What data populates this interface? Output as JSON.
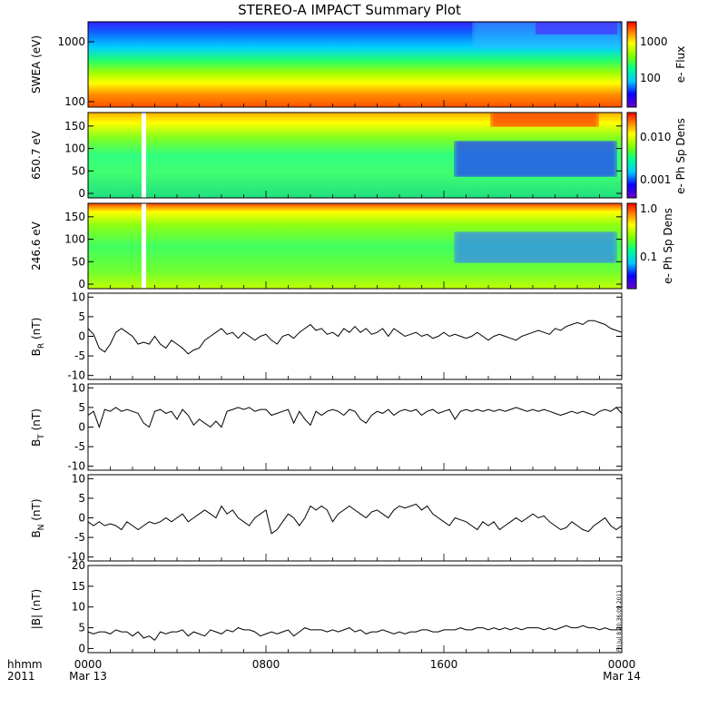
{
  "title": "STEREO-A IMPACT Summary Plot",
  "stamp": "Fri Jul 8 20:36:09 2011",
  "x_axis": {
    "row1_label": "hhmm",
    "row2_label": "2011",
    "ticks": [
      "0000",
      "0800",
      "1600",
      "0000"
    ],
    "dates": [
      "Mar 13",
      "Mar 14"
    ]
  },
  "colorbars": [
    {
      "label": "e- Flux",
      "ticks": [
        "1000",
        "100"
      ]
    },
    {
      "label": "e- Ph Sp Dens",
      "ticks": [
        "0.010",
        "0.001"
      ]
    },
    {
      "label": "e- Ph Sp Dens",
      "ticks": [
        "1.0",
        "0.1"
      ]
    }
  ],
  "panels": {
    "swea": {
      "ylabel": "SWEA (eV)",
      "yticks": [
        "1000",
        "100"
      ]
    },
    "pad650": {
      "ylabel": "650.7 eV",
      "yticks": [
        "150",
        "100",
        "50",
        "0"
      ]
    },
    "pad246": {
      "ylabel": "246.6 eV",
      "yticks": [
        "150",
        "100",
        "50",
        "0"
      ]
    },
    "br": {
      "ylabel": "B",
      "sub": "R",
      "unit": " (nT)",
      "yticks": [
        "10",
        "5",
        "0",
        "-5",
        "-10"
      ]
    },
    "bt": {
      "ylabel": "B",
      "sub": "T",
      "unit": " (nT)",
      "yticks": [
        "10",
        "5",
        "0",
        "-5",
        "-10"
      ]
    },
    "bn": {
      "ylabel": "B",
      "sub": "N",
      "unit": " (nT)",
      "yticks": [
        "10",
        "5",
        "0",
        "-5",
        "-10"
      ]
    },
    "bmag": {
      "ylabel": "|B| (nT)",
      "yticks": [
        "20",
        "15",
        "10",
        "5",
        "0"
      ]
    }
  },
  "chart_data": [
    {
      "type": "heatmap",
      "name": "SWEA",
      "x": [
        0,
        24
      ],
      "ylim": [
        90,
        2000
      ],
      "yscale": "log",
      "ylabel": "SWEA (eV)",
      "colorbar_label": "e- Flux",
      "colorbar_range": [
        20,
        3000
      ],
      "description_levels": [
        {
          "energy_eV": 1500,
          "flux": 30
        },
        {
          "energy_eV": 1000,
          "flux": 80
        },
        {
          "energy_eV": 600,
          "flux": 200
        },
        {
          "energy_eV": 300,
          "flux": 800
        },
        {
          "energy_eV": 150,
          "flux": 2000
        },
        {
          "energy_eV": 100,
          "flux": 2500
        }
      ]
    },
    {
      "type": "heatmap",
      "name": "PAD 650.7 eV",
      "x": [
        0,
        24
      ],
      "ylim": [
        -10,
        180
      ],
      "ylabel": "650.7 eV",
      "colorbar_label": "e- Ph Sp Dens",
      "colorbar_range": [
        0.0003,
        0.03
      ],
      "colorbar_scale": "log"
    },
    {
      "type": "heatmap",
      "name": "PAD 246.6 eV",
      "x": [
        0,
        24
      ],
      "ylim": [
        -10,
        180
      ],
      "ylabel": "246.6 eV",
      "colorbar_label": "e- Ph Sp Dens",
      "colorbar_range": [
        0.02,
        1.0
      ],
      "colorbar_scale": "log"
    },
    {
      "type": "line",
      "name": "B_R",
      "ylabel": "B_R (nT)",
      "ylim": [
        -11,
        11
      ],
      "xlim": [
        0,
        24
      ],
      "x": [
        0,
        0.25,
        0.5,
        0.75,
        1,
        1.25,
        1.5,
        1.75,
        2,
        2.25,
        2.5,
        2.75,
        3,
        3.25,
        3.5,
        3.75,
        4,
        4.25,
        4.5,
        4.75,
        5,
        5.25,
        5.5,
        5.75,
        6,
        6.25,
        6.5,
        6.75,
        7,
        7.25,
        7.5,
        7.75,
        8,
        8.25,
        8.5,
        8.75,
        9,
        9.25,
        9.5,
        9.75,
        10,
        10.25,
        10.5,
        10.75,
        11,
        11.25,
        11.5,
        11.75,
        12,
        12.25,
        12.5,
        12.75,
        13,
        13.25,
        13.5,
        13.75,
        14,
        14.25,
        14.5,
        14.75,
        15,
        15.25,
        15.5,
        15.75,
        16,
        16.25,
        16.5,
        16.75,
        17,
        17.25,
        17.5,
        17.75,
        18,
        18.25,
        18.5,
        18.75,
        19,
        19.25,
        19.5,
        19.75,
        20,
        20.25,
        20.5,
        20.75,
        21,
        21.25,
        21.5,
        21.75,
        22,
        22.25,
        22.5,
        22.75,
        23,
        23.25,
        23.5,
        23.75,
        24
      ],
      "values": [
        2,
        0.5,
        -3,
        -4,
        -2,
        1,
        2,
        1,
        0,
        -2,
        -1.5,
        -2,
        0,
        -2,
        -3,
        -1,
        -2,
        -3,
        -4.5,
        -3.5,
        -3,
        -1,
        0,
        1,
        2,
        0.5,
        1,
        -0.5,
        1,
        0,
        -1,
        0,
        0.5,
        -1,
        -2,
        0,
        0.5,
        -0.5,
        1,
        2,
        3,
        1.5,
        2,
        0.5,
        1,
        0,
        2,
        1,
        2.5,
        1,
        2,
        0.5,
        1,
        2,
        0,
        2,
        1,
        0,
        0.5,
        1,
        0,
        0.5,
        -0.5,
        0,
        1,
        0,
        0.5,
        0,
        -0.5,
        0,
        1,
        0,
        -1,
        0,
        0.5,
        0,
        -0.5,
        -1,
        0,
        0.5,
        1,
        1.5,
        1,
        0.5,
        2,
        1.5,
        2.5,
        3,
        3.5,
        3,
        4,
        4,
        3.5,
        3,
        2,
        1.5,
        1
      ]
    },
    {
      "type": "line",
      "name": "B_T",
      "ylabel": "B_T (nT)",
      "ylim": [
        -11,
        11
      ],
      "xlim": [
        0,
        24
      ],
      "x": [
        0,
        0.25,
        0.5,
        0.75,
        1,
        1.25,
        1.5,
        1.75,
        2,
        2.25,
        2.5,
        2.75,
        3,
        3.25,
        3.5,
        3.75,
        4,
        4.25,
        4.5,
        4.75,
        5,
        5.25,
        5.5,
        5.75,
        6,
        6.25,
        6.5,
        6.75,
        7,
        7.25,
        7.5,
        7.75,
        8,
        8.25,
        8.5,
        8.75,
        9,
        9.25,
        9.5,
        9.75,
        10,
        10.25,
        10.5,
        10.75,
        11,
        11.25,
        11.5,
        11.75,
        12,
        12.25,
        12.5,
        12.75,
        13,
        13.25,
        13.5,
        13.75,
        14,
        14.25,
        14.5,
        14.75,
        15,
        15.25,
        15.5,
        15.75,
        16,
        16.25,
        16.5,
        16.75,
        17,
        17.25,
        17.5,
        17.75,
        18,
        18.25,
        18.5,
        18.75,
        19,
        19.25,
        19.5,
        19.75,
        20,
        20.25,
        20.5,
        20.75,
        21,
        21.25,
        21.5,
        21.75,
        22,
        22.25,
        22.5,
        22.75,
        23,
        23.25,
        23.5,
        23.75,
        24
      ],
      "values": [
        3,
        4,
        0,
        4.5,
        4,
        5,
        4,
        4.5,
        4,
        3.5,
        1,
        0,
        4,
        4.5,
        3.5,
        4,
        2,
        4.5,
        3,
        0.5,
        2,
        1,
        0,
        1.5,
        0,
        4,
        4.5,
        5,
        4.5,
        5,
        4,
        4.5,
        4.5,
        3,
        3.5,
        4,
        4.5,
        1,
        4,
        2,
        0.5,
        4,
        3,
        4,
        4.5,
        4,
        3,
        4.5,
        4,
        2,
        1,
        3,
        4,
        3.5,
        4.5,
        3,
        4,
        4.5,
        4,
        4.5,
        3,
        4,
        4.5,
        3.5,
        4,
        4.5,
        2,
        4,
        4.5,
        4,
        4.5,
        4,
        4.5,
        4,
        4.5,
        4,
        4.5,
        5,
        4.5,
        4,
        4.5,
        4,
        4.5,
        4,
        3.5,
        3,
        3.5,
        4,
        3.5,
        4,
        3.5,
        3,
        4,
        4.5,
        4,
        5,
        3.5
      ]
    },
    {
      "type": "line",
      "name": "B_N",
      "ylabel": "B_N (nT)",
      "ylim": [
        -11,
        11
      ],
      "xlim": [
        0,
        24
      ],
      "x": [
        0,
        0.25,
        0.5,
        0.75,
        1,
        1.25,
        1.5,
        1.75,
        2,
        2.25,
        2.5,
        2.75,
        3,
        3.25,
        3.5,
        3.75,
        4,
        4.25,
        4.5,
        4.75,
        5,
        5.25,
        5.5,
        5.75,
        6,
        6.25,
        6.5,
        6.75,
        7,
        7.25,
        7.5,
        7.75,
        8,
        8.25,
        8.5,
        8.75,
        9,
        9.25,
        9.5,
        9.75,
        10,
        10.25,
        10.5,
        10.75,
        11,
        11.25,
        11.5,
        11.75,
        12,
        12.25,
        12.5,
        12.75,
        13,
        13.25,
        13.5,
        13.75,
        14,
        14.25,
        14.5,
        14.75,
        15,
        15.25,
        15.5,
        15.75,
        16,
        16.25,
        16.5,
        16.75,
        17,
        17.25,
        17.5,
        17.75,
        18,
        18.25,
        18.5,
        18.75,
        19,
        19.25,
        19.5,
        19.75,
        20,
        20.25,
        20.5,
        20.75,
        21,
        21.25,
        21.5,
        21.75,
        22,
        22.25,
        22.5,
        22.75,
        23,
        23.25,
        23.5,
        23.75,
        24
      ],
      "values": [
        -1,
        -2,
        -1,
        -2,
        -1.5,
        -2,
        -3,
        -1,
        -2,
        -3,
        -2,
        -1,
        -1.5,
        -1,
        0,
        -1,
        0,
        1,
        -1,
        0,
        1,
        2,
        1,
        0,
        3,
        1,
        2,
        0,
        -1,
        -2,
        0,
        1,
        2,
        -4,
        -3,
        -1,
        1,
        0,
        -2,
        0,
        3,
        2,
        3,
        2,
        -1,
        1,
        2,
        3,
        2,
        1,
        0,
        1.5,
        2,
        1,
        0,
        2,
        3,
        2.5,
        3,
        3.5,
        2,
        3,
        1,
        0,
        -1,
        -2,
        0,
        -0.5,
        -1,
        -2,
        -3,
        -1,
        -2,
        -1,
        -3,
        -2,
        -1,
        0,
        -1,
        0,
        1,
        0,
        0.5,
        -1,
        -2,
        -3,
        -2.5,
        -1,
        -2,
        -3,
        -3.5,
        -2,
        -1,
        0,
        -2,
        -3,
        -2
      ]
    },
    {
      "type": "line",
      "name": "|B|",
      "ylabel": "|B| (nT)",
      "ylim": [
        -1,
        20
      ],
      "xlim": [
        0,
        24
      ],
      "x": [
        0,
        0.25,
        0.5,
        0.75,
        1,
        1.25,
        1.5,
        1.75,
        2,
        2.25,
        2.5,
        2.75,
        3,
        3.25,
        3.5,
        3.75,
        4,
        4.25,
        4.5,
        4.75,
        5,
        5.25,
        5.5,
        5.75,
        6,
        6.25,
        6.5,
        6.75,
        7,
        7.25,
        7.5,
        7.75,
        8,
        8.25,
        8.5,
        8.75,
        9,
        9.25,
        9.5,
        9.75,
        10,
        10.25,
        10.5,
        10.75,
        11,
        11.25,
        11.5,
        11.75,
        12,
        12.25,
        12.5,
        12.75,
        13,
        13.25,
        13.5,
        13.75,
        14,
        14.25,
        14.5,
        14.75,
        15,
        15.25,
        15.5,
        15.75,
        16,
        16.25,
        16.5,
        16.75,
        17,
        17.25,
        17.5,
        17.75,
        18,
        18.25,
        18.5,
        18.75,
        19,
        19.25,
        19.5,
        19.75,
        20,
        20.25,
        20.5,
        20.75,
        21,
        21.25,
        21.5,
        21.75,
        22,
        22.25,
        22.5,
        22.75,
        23,
        23.25,
        23.5,
        23.75,
        24
      ],
      "values": [
        4,
        3.5,
        4,
        4,
        3.5,
        4.5,
        4,
        4,
        3,
        4,
        2.5,
        3,
        2,
        4,
        3.5,
        4,
        4,
        4.5,
        3,
        4,
        3.5,
        3,
        4.5,
        4,
        3.5,
        4.5,
        4,
        5,
        4.5,
        4.5,
        4,
        3,
        3.5,
        4,
        3.5,
        4,
        4.5,
        3,
        4,
        5,
        4.5,
        4.5,
        4.5,
        4,
        4.5,
        4,
        4.5,
        5,
        4,
        4.5,
        3.5,
        4,
        4,
        4.5,
        4,
        3.5,
        4,
        3.5,
        4,
        4,
        4.5,
        4.5,
        4,
        4,
        4.5,
        4.5,
        4.5,
        5,
        4.5,
        4.5,
        5,
        5,
        4.5,
        5,
        4.5,
        5,
        4.5,
        5,
        4.5,
        5,
        5,
        5,
        4.5,
        5,
        4.5,
        5,
        5.5,
        5,
        5,
        5.5,
        5,
        5,
        4.5,
        5,
        4.5,
        4.5,
        4.5
      ]
    }
  ]
}
